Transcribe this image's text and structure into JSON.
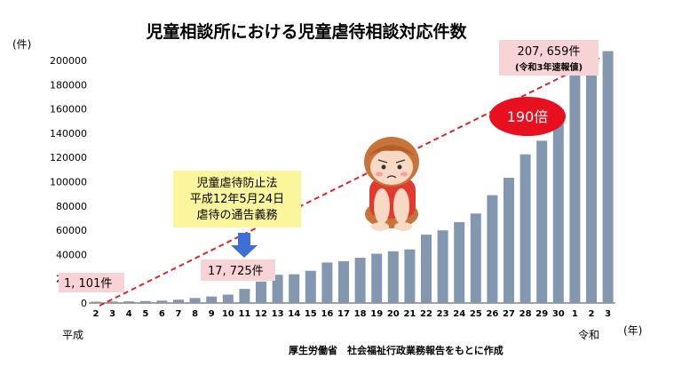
{
  "chart_data": {
    "type": "bar",
    "title": "児童相談所における児童虐待相談対応件数",
    "ylabel": "(件)",
    "xlabel": "(年)",
    "ylim": [
      0,
      200000
    ],
    "yticks": [
      "0",
      "20000",
      "40000",
      "60000",
      "80000",
      "100000",
      "120000",
      "140000",
      "160000",
      "180000",
      "200000"
    ],
    "categories": [
      "2",
      "3",
      "4",
      "5",
      "6",
      "7",
      "8",
      "9",
      "10",
      "11",
      "12",
      "13",
      "14",
      "15",
      "16",
      "17",
      "18",
      "19",
      "20",
      "21",
      "22",
      "23",
      "24",
      "25",
      "26",
      "27",
      "28",
      "29",
      "30",
      "1",
      "2",
      "3"
    ],
    "values": [
      1101,
      1171,
      1372,
      1611,
      1961,
      2722,
      4102,
      5352,
      6932,
      11631,
      17725,
      23274,
      23738,
      26569,
      33408,
      34472,
      37323,
      40639,
      42664,
      44211,
      56384,
      59919,
      66701,
      73802,
      88931,
      103286,
      122575,
      133778,
      159838,
      193780,
      205044,
      207659
    ],
    "bar_color": "#8497b0",
    "era_labels": {
      "heisei": "平成",
      "reiwa": "令和"
    },
    "annotations": {
      "start_value": "1, 101件",
      "law_box": [
        "児童虐待防止法",
        "平成12年5月24日",
        "虐待の通告義務"
      ],
      "h12_value": "17, 725件",
      "end_value": "207, 659件",
      "end_note": "(令和3年速報値)",
      "ratio": "190倍"
    },
    "source": "厚生労働省　社会福祉行政業務報告をもとに作成",
    "colors": {
      "trend_line": "#e0242a",
      "value_box": "#f8d3d6",
      "law_box": "#fbf59b",
      "ratio_ellipse": "#e8101e",
      "arrow": "#3d6fd6"
    }
  }
}
